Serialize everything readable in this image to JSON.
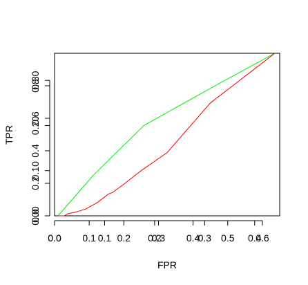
{
  "chart_data": {
    "type": "line",
    "title": "",
    "xlabel": "FPR",
    "ylabel": "TPR",
    "grid": false,
    "legend": "none",
    "axes": [
      {
        "name": "primary",
        "xlim": [
          0,
          0.65
        ],
        "ylim": [
          0,
          0.36
        ],
        "x_ticks": [
          {
            "value": 0.0,
            "label": "0.0"
          },
          {
            "value": 0.1,
            "label": "0.1"
          },
          {
            "value": 0.2,
            "label": "0.2"
          },
          {
            "value": 0.3,
            "label": "0.3"
          },
          {
            "value": 0.4,
            "label": "0.4"
          },
          {
            "value": 0.5,
            "label": "0.5"
          },
          {
            "value": 0.6,
            "label": "0.6"
          }
        ],
        "y_ticks": [
          {
            "value": 0.0,
            "label": "0.00"
          },
          {
            "value": 0.1,
            "label": "0.10"
          },
          {
            "value": 0.2,
            "label": "0.20"
          },
          {
            "value": 0.3,
            "label": "0.30"
          }
        ]
      },
      {
        "name": "secondary",
        "xlim": [
          0,
          0.45
        ],
        "ylim": [
          0,
          1.0
        ],
        "x_ticks": [
          {
            "value": 0.0,
            "label": "0.0"
          },
          {
            "value": 0.1,
            "label": "0.1"
          },
          {
            "value": 0.2,
            "label": "0.2"
          },
          {
            "value": 0.3,
            "label": "0.3"
          },
          {
            "value": 0.4,
            "label": "0.4"
          }
        ],
        "y_ticks": [
          {
            "value": 0.0,
            "label": "0.0"
          },
          {
            "value": 0.2,
            "label": "0.2"
          },
          {
            "value": 0.4,
            "label": "0.4"
          },
          {
            "value": 0.6,
            "label": "0.6"
          },
          {
            "value": 0.8,
            "label": "0.8"
          }
        ]
      }
    ],
    "series": [
      {
        "color": "#00ee00",
        "x": [
          0.01,
          0.112,
          0.258,
          0.48,
          0.636
        ],
        "y": [
          0.0,
          0.09,
          0.2,
          0.295,
          0.36
        ]
      },
      {
        "color": "#ee0000",
        "x": [
          0.01,
          0.028,
          0.04,
          0.06,
          0.09,
          0.125,
          0.155,
          0.168,
          0.2,
          0.25,
          0.325,
          0.45,
          0.636
        ],
        "y": [
          0.0,
          0.0,
          0.005,
          0.008,
          0.015,
          0.03,
          0.048,
          0.052,
          0.07,
          0.1,
          0.14,
          0.25,
          0.36
        ]
      }
    ]
  }
}
